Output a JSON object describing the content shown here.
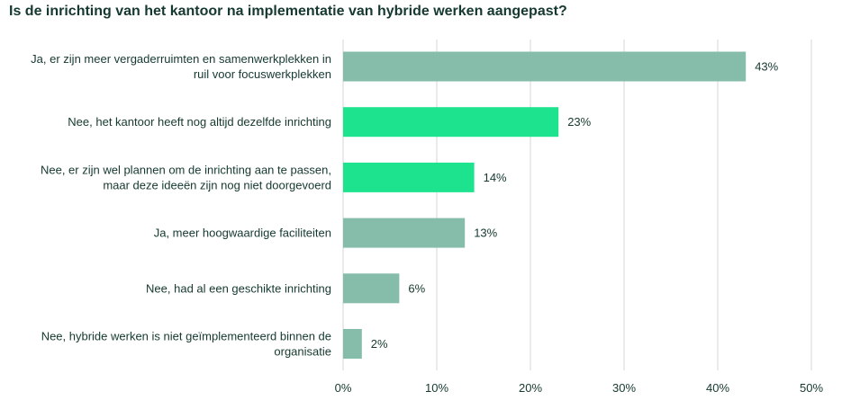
{
  "chart_data": {
    "type": "bar",
    "orientation": "horizontal",
    "title": "Is de inrichting van het kantoor na implementatie van hybride werken aangepast?",
    "categories": [
      [
        "Ja, er zijn meer vergaderruimten en samenwerkplekken in",
        "ruil voor focuswerkplekken"
      ],
      [
        "Nee, het kantoor heeft nog altijd dezelfde inrichting"
      ],
      [
        "Nee, er zijn wel plannen om de inrichting aan te passen,",
        "maar deze ideeën zijn nog niet doorgevoerd"
      ],
      [
        "Ja, meer hoogwaardige faciliteiten"
      ],
      [
        "Nee, had al een geschikte inrichting"
      ],
      [
        "Nee, hybride werken is niet geïmplementeerd binnen de",
        "organisatie"
      ]
    ],
    "values": [
      43,
      23,
      14,
      13,
      6,
      2
    ],
    "value_labels": [
      "43%",
      "23%",
      "14%",
      "13%",
      "6%",
      "2%"
    ],
    "bar_colors": [
      "#86bcaa",
      "#1de38e",
      "#1de38e",
      "#86bcaa",
      "#86bcaa",
      "#86bcaa"
    ],
    "xlim": [
      0,
      50
    ],
    "xticks": [
      0,
      10,
      20,
      30,
      40,
      50
    ],
    "xtick_labels": [
      "0%",
      "10%",
      "20%",
      "30%",
      "40%",
      "50%"
    ],
    "grid": "vertical",
    "gridline_color": "#d6d6d6",
    "text_color": "#15392f"
  }
}
